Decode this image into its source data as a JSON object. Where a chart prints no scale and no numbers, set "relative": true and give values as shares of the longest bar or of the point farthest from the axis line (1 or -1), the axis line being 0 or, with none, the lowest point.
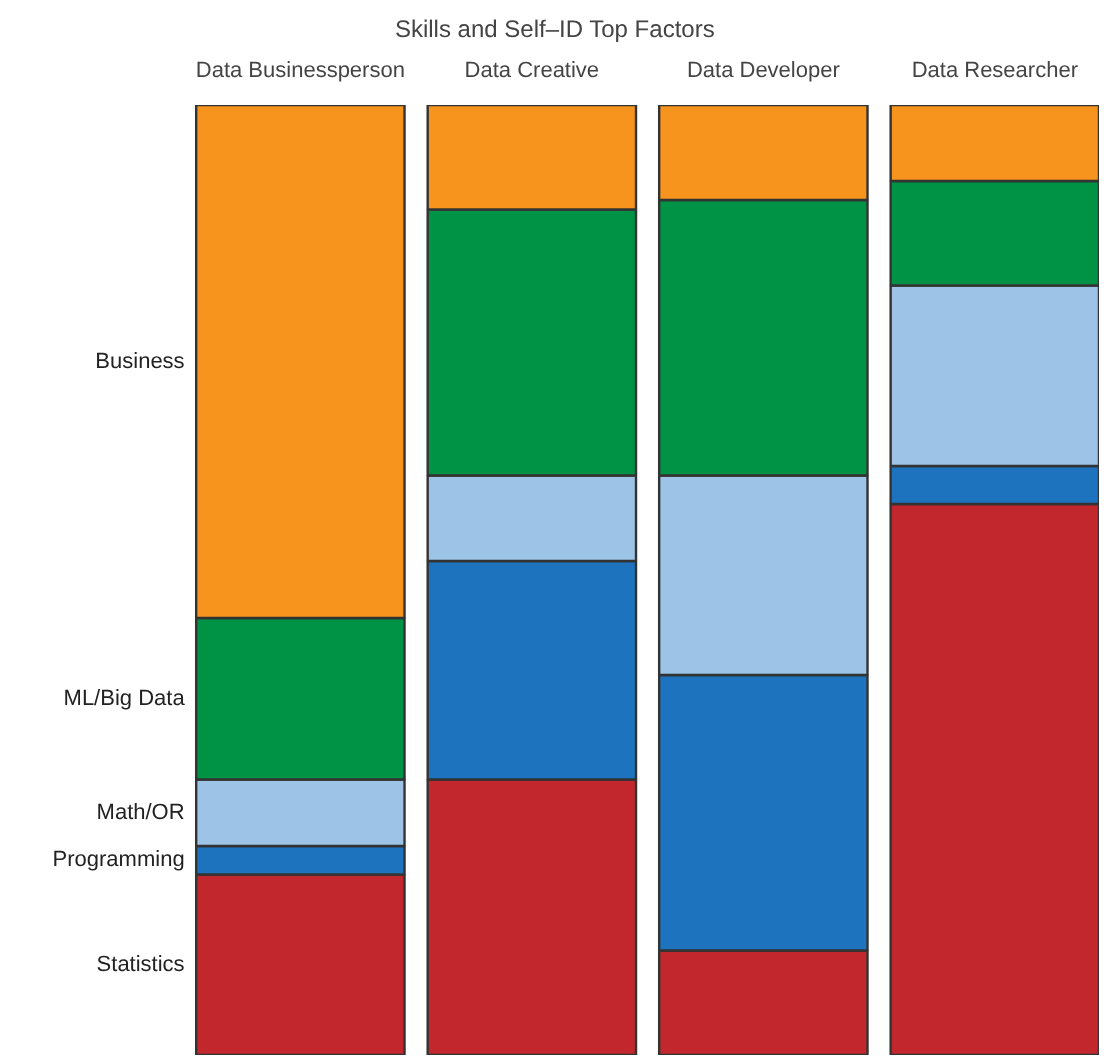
{
  "chart_data": {
    "type": "bar",
    "stacked": true,
    "relative": true,
    "title": "Skills and Self–ID Top Factors",
    "categories": [
      "Data Businessperson",
      "Data Creative",
      "Data Developer",
      "Data Researcher"
    ],
    "series": [
      {
        "name": "Statistics",
        "color": "#c1272d",
        "values": [
          0.19,
          0.29,
          0.11,
          0.58
        ]
      },
      {
        "name": "Programming",
        "color": "#1e73be",
        "values": [
          0.03,
          0.23,
          0.29,
          0.04
        ]
      },
      {
        "name": "Math/OR",
        "color": "#9dc3e6",
        "values": [
          0.07,
          0.09,
          0.21,
          0.19
        ]
      },
      {
        "name": "ML/Big Data",
        "color": "#009245",
        "values": [
          0.17,
          0.28,
          0.29,
          0.11
        ]
      },
      {
        "name": "Business",
        "color": "#f7941d",
        "values": [
          0.54,
          0.11,
          0.1,
          0.08
        ]
      }
    ]
  }
}
